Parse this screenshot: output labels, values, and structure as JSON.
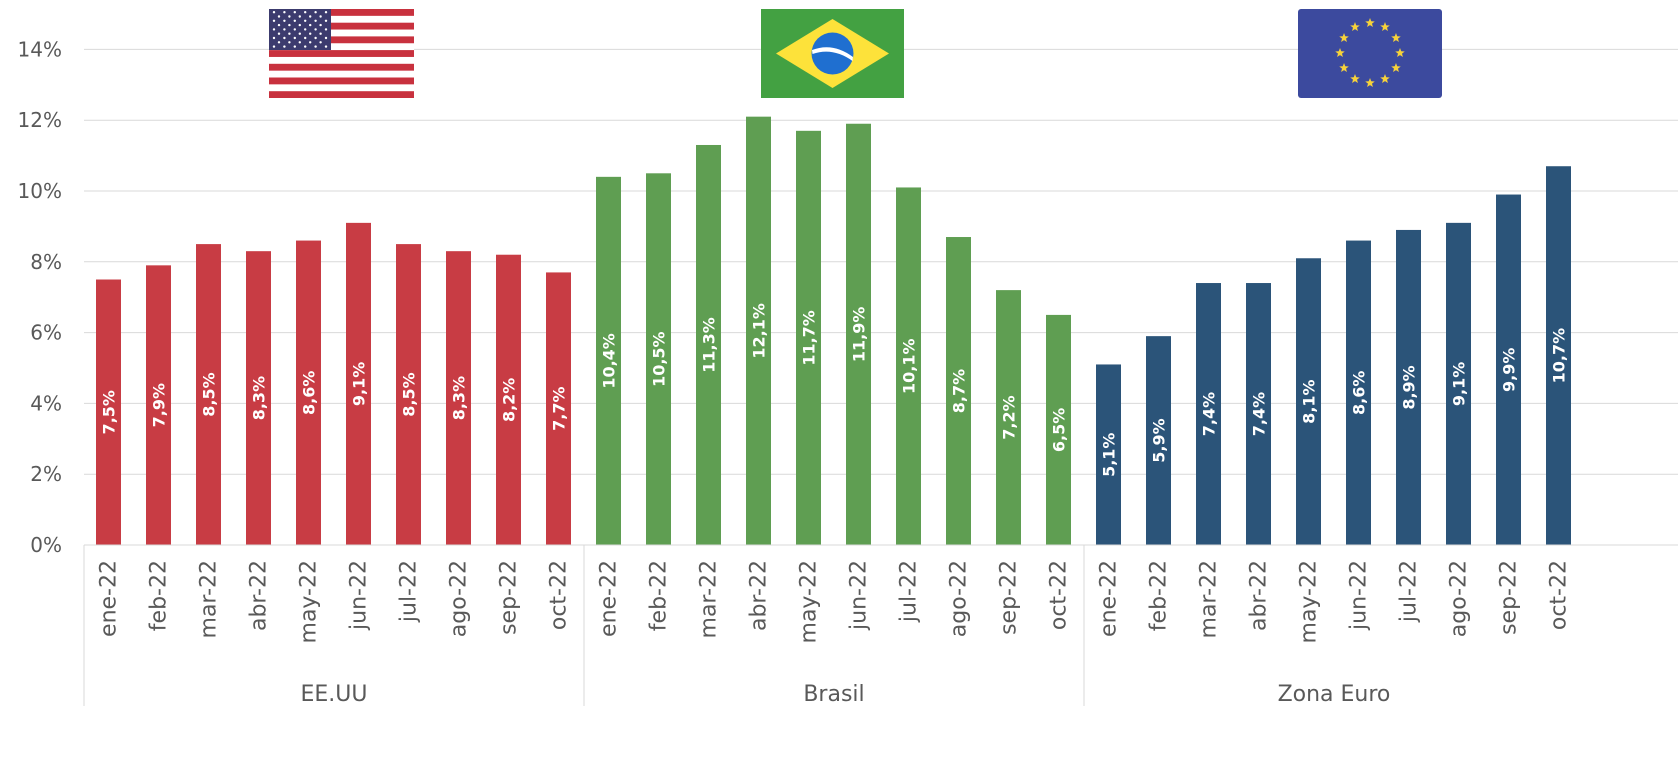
{
  "chart_data": {
    "type": "bar",
    "y_ticks": [
      "0%",
      "2%",
      "4%",
      "6%",
      "8%",
      "10%",
      "12%",
      "14%"
    ],
    "ylim": [
      0,
      14
    ],
    "grid": true,
    "months": [
      "ene-22",
      "feb-22",
      "mar-22",
      "abr-22",
      "may-22",
      "jun-22",
      "jul-22",
      "ago-22",
      "sep-22",
      "oct-22"
    ],
    "groups": [
      {
        "name": "EE.UU",
        "flag": "usa-flag",
        "color": "#c83c44",
        "values": [
          7.5,
          7.9,
          8.5,
          8.3,
          8.6,
          9.1,
          8.5,
          8.3,
          8.2,
          7.7
        ],
        "labels": [
          "7,5%",
          "7,9%",
          "8,5%",
          "8,3%",
          "8,6%",
          "9,1%",
          "8,5%",
          "8,3%",
          "8,2%",
          "7,7%"
        ]
      },
      {
        "name": "Brasil",
        "flag": "brazil-flag",
        "color": "#5f9e52",
        "values": [
          10.4,
          10.5,
          11.3,
          12.1,
          11.7,
          11.9,
          10.1,
          8.7,
          7.2,
          6.5
        ],
        "labels": [
          "10,4%",
          "10,5%",
          "11,3%",
          "12,1%",
          "11,7%",
          "11,9%",
          "10,1%",
          "8,7%",
          "7,2%",
          "6,5%"
        ]
      },
      {
        "name": "Zona Euro",
        "flag": "eu-flag",
        "color": "#2b5479",
        "values": [
          5.1,
          5.9,
          7.4,
          7.4,
          8.1,
          8.6,
          8.9,
          9.1,
          9.9,
          10.7
        ],
        "labels": [
          "5,1%",
          "5,9%",
          "7,4%",
          "7,4%",
          "8,1%",
          "8,6%",
          "8,9%",
          "9,1%",
          "9,9%",
          "10,7%"
        ]
      }
    ]
  },
  "colors": {
    "grid": "#d9d9d9",
    "axis_text": "#595959",
    "bar_label": "#ffffff"
  }
}
